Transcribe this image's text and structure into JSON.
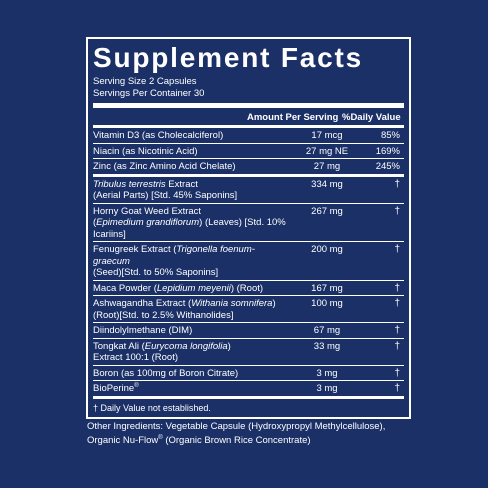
{
  "title": "Supplement Facts",
  "serving_size": "Serving Size 2 Capsules",
  "servings_per_container": "Servings Per Container 30",
  "header": {
    "amount": "Amount Per Serving",
    "dv": "%Daily Value"
  },
  "vitamins": [
    {
      "name": "Vitamin D3 (as Cholecalciferol)",
      "amount": "17 mcg",
      "dv": "85%"
    },
    {
      "name": "Niacin (as Nicotinic Acid)",
      "amount": "27 mg NE",
      "dv": "169%"
    },
    {
      "name": "Zinc (as Zinc Amino Acid Chelate)",
      "amount": "27 mg",
      "dv": "245%"
    }
  ],
  "ingredients": [
    {
      "line1_italic": "Tribulus terrestris",
      "line1": " Extract",
      "line2": "(Aerial Parts) [Std. 45% Saponins]",
      "amount": "334 mg",
      "dv": "†"
    },
    {
      "line1": "Horny Goat Weed Extract",
      "line2_pre": "(",
      "line2_italic": "Epimedium grandiflorum",
      "line2": ") (Leaves) [Std. 10% Icariins]",
      "amount": "267 mg",
      "dv": "†"
    },
    {
      "line1": "Fenugreek Extract (",
      "line1_italic": "Trigonella foenum-graecum",
      "line1_post": "",
      "line2": "(Seed)[Std. to 50% Saponins]",
      "amount": "200 mg",
      "dv": "†"
    },
    {
      "line1": "Maca Powder (",
      "line1_italic": "Lepidium meyenii",
      "line1_post": ") (Root)",
      "amount": "167 mg",
      "dv": "†"
    },
    {
      "line1": "Ashwagandha Extract (",
      "line1_italic": "Withania somnifera",
      "line1_post": ")",
      "line2": "(Root)[Std. to 2.5% Withanolides]",
      "amount": "100 mg",
      "dv": "†"
    },
    {
      "line1": "Diindolylmethane (DIM)",
      "amount": "67 mg",
      "dv": "†"
    },
    {
      "line1": "Tongkat Ali (",
      "line1_italic": "Eurycoma longifolia",
      "line1_post": ")",
      "line2": "Extract 100:1 (Root)",
      "amount": "33 mg",
      "dv": "†"
    },
    {
      "line1": "Boron (as 100mg of Boron Citrate)",
      "amount": "3 mg",
      "dv": "†"
    },
    {
      "line1": "BioPerine",
      "sup": "®",
      "amount": "3 mg",
      "dv": "†"
    }
  ],
  "footnote": "† Daily Value not established.",
  "other_ingredients": {
    "prefix": "Other Ingredients: Vegetable Capsule (Hydroxypropyl Methylcellulose), Organic Nu-Flow",
    "sup": "®",
    "suffix": " (Organic Brown Rice Concentrate)"
  }
}
